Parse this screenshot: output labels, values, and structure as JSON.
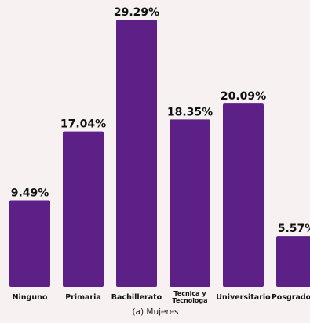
{
  "chart_data": {
    "type": "bar",
    "categories": [
      "Ninguno",
      "Primaria",
      "Bachillerato",
      "Tecnica y Tecnologa",
      "Universitario",
      "Posgrado"
    ],
    "category_lines": [
      [
        "Ninguno"
      ],
      [
        "Primaria"
      ],
      [
        "Bachillerato"
      ],
      [
        "Tecnica y",
        "Tecnologa"
      ],
      [
        "Universitario"
      ],
      [
        "Posgrado"
      ]
    ],
    "values": [
      9.49,
      17.04,
      29.29,
      18.35,
      20.09,
      5.57
    ],
    "value_labels": [
      "9.49%",
      "17.04%",
      "29.29%",
      "18.35%",
      "20.09%",
      "5.57%"
    ],
    "title": "",
    "xlabel": "",
    "ylabel": "",
    "ylim": [
      0,
      29.29
    ],
    "grid": false,
    "legend": "none",
    "bar_color": "#5c2087",
    "caption": "(a) Mujeres"
  }
}
